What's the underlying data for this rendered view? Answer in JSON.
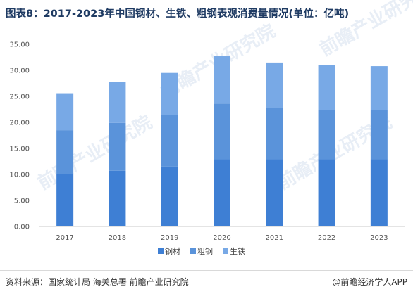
{
  "title": "图表8：2017-2023年中国钢材、生铁、粗钢表观消费量情况(单位：亿吨)",
  "source": "资料来源：国家统计局 海关总署 前瞻产业研究院",
  "brand": "@前瞻经济学人APP",
  "watermark": "前瞻产业研究院",
  "chart_data": {
    "type": "bar",
    "stacked": true,
    "title": "图表8：2017-2023年中国钢材、生铁、粗钢表观消费量情况(单位：亿吨)",
    "categories": [
      "2017",
      "2018",
      "2019",
      "2020",
      "2021",
      "2022",
      "2023"
    ],
    "series": [
      {
        "name": "钢材",
        "color": "#3e7fd4",
        "values": [
          10.0,
          10.7,
          11.5,
          12.9,
          12.9,
          12.9,
          12.9
        ]
      },
      {
        "name": "粗钢",
        "color": "#5a93da",
        "values": [
          8.5,
          9.2,
          9.9,
          10.7,
          9.9,
          9.5,
          9.5
        ]
      },
      {
        "name": "生铁",
        "color": "#78a9e6",
        "values": [
          7.1,
          7.9,
          8.1,
          9.1,
          8.7,
          8.6,
          8.4
        ]
      }
    ],
    "ylim": [
      0,
      35
    ],
    "yticks": [
      "0.00",
      "5.00",
      "10.00",
      "15.00",
      "20.00",
      "25.00",
      "30.00",
      "35.00"
    ],
    "legend_position": "bottom",
    "grid": false
  }
}
